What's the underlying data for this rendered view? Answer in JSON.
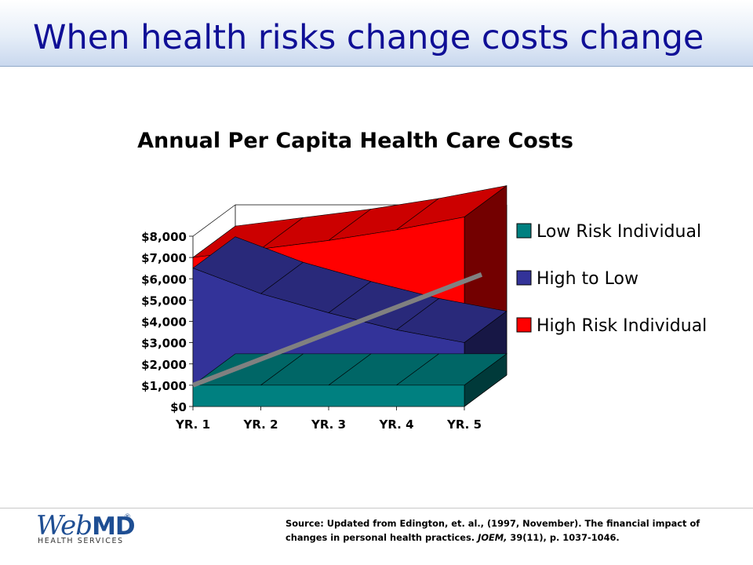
{
  "slide": {
    "title": "When health risks change costs change"
  },
  "chart_data": {
    "type": "area",
    "title": "Annual Per Capita Health Care Costs",
    "categories": [
      "YR. 1",
      "YR. 2",
      "YR. 3",
      "YR. 4",
      "YR. 5"
    ],
    "y_ticks": [
      "$0",
      "$1,000",
      "$2,000",
      "$3,000",
      "$4,000",
      "$5,000",
      "$6,000",
      "$7,000",
      "$8,000"
    ],
    "ylim": [
      0,
      8000
    ],
    "series": [
      {
        "name": "Low Risk Individual",
        "values": [
          1000,
          1000,
          1000,
          1000,
          1000
        ],
        "color": "#008080"
      },
      {
        "name": "High to Low",
        "values": [
          6500,
          5300,
          4400,
          3600,
          3000
        ],
        "color": "#333399"
      },
      {
        "name": "High Risk Individual",
        "values": [
          7000,
          7400,
          7800,
          8300,
          8900
        ],
        "color": "#ff0000"
      }
    ],
    "trend_line": {
      "values": [
        1000,
        2300,
        3600,
        4900,
        6200
      ],
      "color": "#808080"
    },
    "legend_position": "right",
    "style": "3d"
  },
  "footer": {
    "logo_web": "Web",
    "logo_md": "MD",
    "logo_reg": "®",
    "logo_sub": "HEALTH SERVICES",
    "source_text": "Source: Updated from Edington, et. al., (1997, November). The financial impact of changes in personal health practices. ",
    "source_journal": "JOEM,",
    "source_tail": " 39(11), p. 1037-1046."
  }
}
